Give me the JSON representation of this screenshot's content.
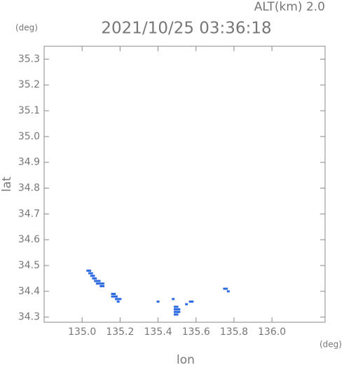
{
  "chart_data": {
    "type": "scatter",
    "altitude_label": "ALT(km) 2.0",
    "title": "2021/10/25 03:36:18",
    "y_unit": "(deg)",
    "x_unit": "(deg)",
    "xlabel": "lon",
    "ylabel": "lat",
    "color": "#2f6be0",
    "xlim": [
      134.8,
      136.28
    ],
    "ylim": [
      34.28,
      35.35
    ],
    "xticks": [
      {
        "value": 135.0,
        "label": "135.0"
      },
      135.2,
      135.4,
      135.6,
      135.8,
      {
        "value": 136.0,
        "label": "136.0"
      }
    ],
    "yticks": [
      34.3,
      34.4,
      34.5,
      34.6,
      34.7,
      34.8,
      34.9,
      {
        "value": 35.0,
        "label": "35.0"
      },
      35.1,
      35.2,
      35.3
    ],
    "x": [
      135.03,
      135.04,
      135.04,
      135.05,
      135.05,
      135.06,
      135.06,
      135.07,
      135.07,
      135.08,
      135.08,
      135.09,
      135.09,
      135.1,
      135.1,
      135.11,
      135.11,
      135.16,
      135.17,
      135.17,
      135.18,
      135.18,
      135.19,
      135.19,
      135.2,
      135.16,
      135.49,
      135.49,
      135.49,
      135.49,
      135.5,
      135.5,
      135.5,
      135.5,
      135.51,
      135.51,
      135.4,
      135.48,
      135.55,
      135.57,
      135.58,
      135.75,
      135.76,
      135.77
    ],
    "y": [
      34.48,
      34.48,
      34.47,
      34.47,
      34.46,
      34.46,
      34.45,
      34.45,
      34.44,
      34.44,
      34.43,
      34.44,
      34.43,
      34.43,
      34.42,
      34.42,
      34.43,
      34.39,
      34.39,
      34.38,
      34.38,
      34.37,
      34.37,
      34.36,
      34.37,
      34.38,
      34.34,
      34.33,
      34.32,
      34.31,
      34.34,
      34.33,
      34.32,
      34.31,
      34.33,
      34.32,
      34.36,
      34.37,
      34.35,
      34.36,
      34.36,
      34.41,
      34.41,
      34.4
    ]
  }
}
